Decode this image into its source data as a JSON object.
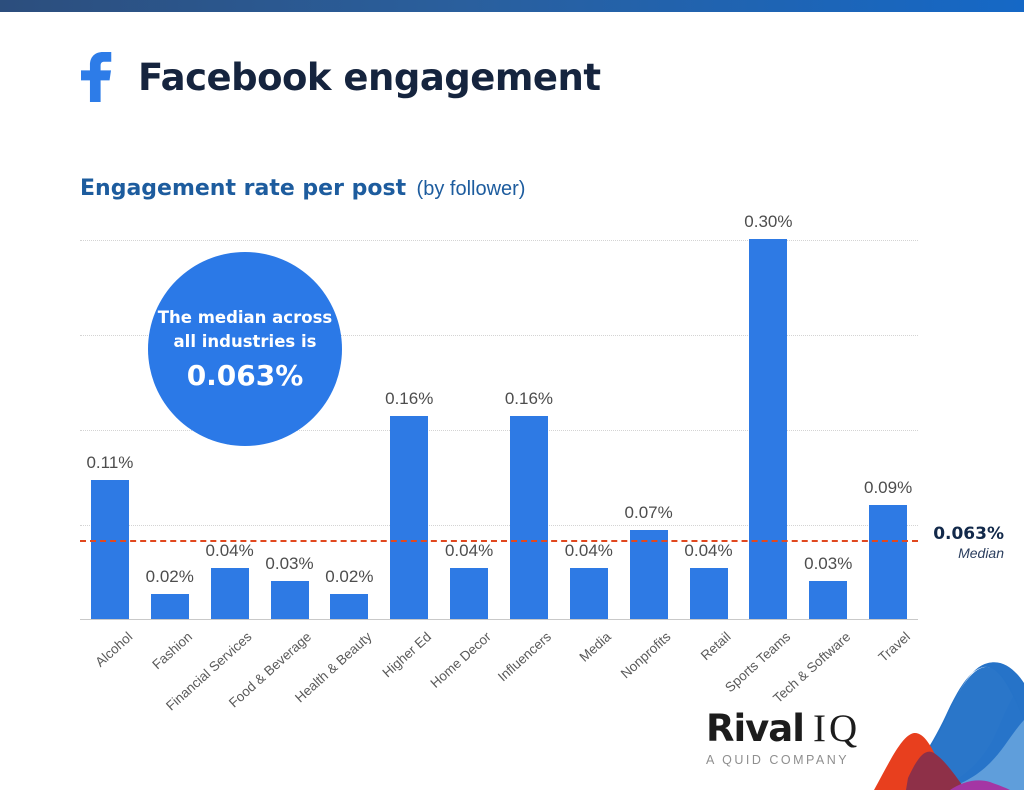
{
  "header": {
    "title": "Facebook engagement",
    "logo_icon": "facebook-f-icon",
    "logo_color": "#2d7ce8"
  },
  "subtitle": {
    "strong": "Engagement rate per post",
    "light": "(by follower)"
  },
  "chart_data": {
    "type": "bar",
    "title": "Engagement rate per post (by follower)",
    "categories": [
      "Alcohol",
      "Fashion",
      "Financial Services",
      "Food & Beverage",
      "Health & Beauty",
      "Higher Ed",
      "Home Decor",
      "Influencers",
      "Media",
      "Nonprofits",
      "Retail",
      "Sports Teams",
      "Tech & Software",
      "Travel"
    ],
    "values": [
      0.11,
      0.02,
      0.04,
      0.03,
      0.02,
      0.16,
      0.04,
      0.16,
      0.04,
      0.07,
      0.04,
      0.3,
      0.03,
      0.09
    ],
    "value_labels": [
      "0.11%",
      "0.02%",
      "0.04%",
      "0.03%",
      "0.02%",
      "0.16%",
      "0.04%",
      "0.16%",
      "0.04%",
      "0.07%",
      "0.04%",
      "0.30%",
      "0.03%",
      "0.09%"
    ],
    "ylim": [
      0,
      0.3
    ],
    "gridline_values": [
      0.075,
      0.15,
      0.225,
      0.3
    ],
    "grid": "dotted horizontal, no y-axis tick labels",
    "median_value": 0.063,
    "median_label": "0.063%",
    "median_sublabel": "Median",
    "bar_color": "#2e7ae4",
    "median_line_color": "#e1481f",
    "legend_position": "none"
  },
  "callout": {
    "line1": "The median across",
    "line2": "all industries is",
    "value": "0.063%",
    "color": "#2b79e7"
  },
  "footer": {
    "brand_bold": "Rival",
    "brand_serif": "IQ",
    "tagline": "A QUID COMPANY",
    "waves_icon": "wave-hills-decoration"
  }
}
